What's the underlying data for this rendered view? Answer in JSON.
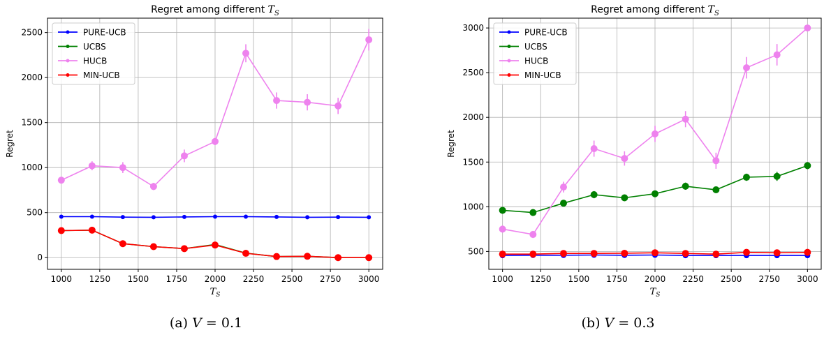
{
  "chart_data": [
    {
      "type": "line",
      "title": "Regret among different T_S",
      "title_prefix": "Regret among different ",
      "title_var": "T",
      "title_sub": "S",
      "xlabel_var": "T",
      "xlabel_sub": "S",
      "ylabel": "Regret",
      "x": [
        1000,
        1200,
        1400,
        1600,
        1800,
        2000,
        2200,
        2400,
        2600,
        2800,
        3000
      ],
      "xlim": [
        910,
        3090
      ],
      "ylim": [
        -130,
        2660
      ],
      "xticks": [
        1000,
        1250,
        1500,
        1750,
        2000,
        2250,
        2500,
        2750,
        3000
      ],
      "yticks": [
        0,
        500,
        1000,
        1500,
        2000,
        2500
      ],
      "grid": true,
      "legend_position": "top-left",
      "caption_prefix": "(a) ",
      "caption_var": "V",
      "caption_eq": " = 0.1",
      "series": [
        {
          "name": "PURE-UCB",
          "color": "#0000ff",
          "marker_size": 3,
          "values": [
            455,
            455,
            450,
            448,
            452,
            455,
            455,
            452,
            448,
            450,
            448
          ],
          "err": [
            12,
            10,
            10,
            10,
            10,
            10,
            10,
            10,
            10,
            10,
            10
          ]
        },
        {
          "name": "UCBS",
          "color": "#008000",
          "marker_size": 3,
          "values": [
            300,
            305,
            155,
            122,
            100,
            145,
            50,
            12,
            15,
            0,
            0
          ],
          "err": [
            15,
            15,
            15,
            15,
            15,
            15,
            15,
            10,
            10,
            5,
            5
          ]
        },
        {
          "name": "HUCB",
          "color": "#ee82ee",
          "marker_size": 5,
          "values": [
            860,
            1020,
            1000,
            790,
            1130,
            1290,
            2270,
            1745,
            1725,
            1685,
            2420
          ],
          "err": [
            30,
            50,
            60,
            40,
            70,
            40,
            100,
            90,
            90,
            90,
            120
          ]
        },
        {
          "name": "MIN-UCB",
          "color": "#ff0000",
          "marker_size": 5,
          "values": [
            300,
            305,
            155,
            122,
            100,
            140,
            48,
            12,
            15,
            0,
            0
          ],
          "err": [
            15,
            15,
            15,
            15,
            15,
            15,
            15,
            10,
            10,
            5,
            5
          ]
        }
      ]
    },
    {
      "type": "line",
      "title": "Regret among different T_S",
      "title_prefix": "Regret among different ",
      "title_var": "T",
      "title_sub": "S",
      "xlabel_var": "T",
      "xlabel_sub": "S",
      "ylabel": "Regret",
      "x": [
        1000,
        1200,
        1400,
        1600,
        1800,
        2000,
        2200,
        2400,
        2600,
        2800,
        3000
      ],
      "xlim": [
        910,
        3090
      ],
      "ylim": [
        300,
        3110
      ],
      "xticks": [
        1000,
        1250,
        1500,
        1750,
        2000,
        2250,
        2500,
        2750,
        3000
      ],
      "yticks": [
        500,
        1000,
        1500,
        2000,
        2500,
        3000
      ],
      "grid": true,
      "legend_position": "top-left",
      "caption_prefix": "(b) ",
      "caption_var": "V",
      "caption_eq": " = 0.3",
      "series": [
        {
          "name": "PURE-UCB",
          "color": "#0000ff",
          "marker_size": 4,
          "values": [
            455,
            458,
            458,
            460,
            458,
            460,
            455,
            455,
            455,
            455,
            455
          ],
          "err": [
            10,
            10,
            10,
            10,
            10,
            10,
            10,
            10,
            10,
            10,
            10
          ]
        },
        {
          "name": "UCBS",
          "color": "#008000",
          "marker_size": 5,
          "values": [
            960,
            935,
            1040,
            1135,
            1100,
            1145,
            1230,
            1190,
            1330,
            1340,
            1460
          ],
          "err": [
            20,
            20,
            30,
            40,
            30,
            30,
            40,
            30,
            40,
            50,
            40
          ]
        },
        {
          "name": "HUCB",
          "color": "#ee82ee",
          "marker_size": 5,
          "values": [
            750,
            690,
            1220,
            1650,
            1540,
            1815,
            1980,
            1515,
            2555,
            2700,
            3000
          ],
          "err": [
            40,
            40,
            60,
            90,
            80,
            90,
            90,
            90,
            120,
            120,
            30
          ]
        },
        {
          "name": "MIN-UCB",
          "color": "#ff0000",
          "marker_size": 5,
          "values": [
            470,
            470,
            478,
            478,
            480,
            485,
            478,
            470,
            490,
            485,
            490
          ],
          "err": [
            10,
            10,
            10,
            10,
            10,
            10,
            10,
            10,
            10,
            10,
            10
          ]
        }
      ]
    }
  ]
}
